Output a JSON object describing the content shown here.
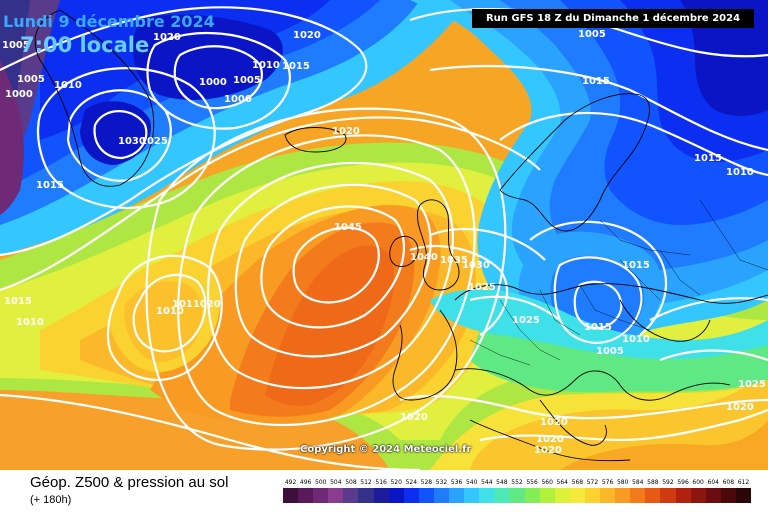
{
  "header": {
    "date": "Lundi 9 décembre 2024",
    "time": "7:00 locale",
    "run": "Run GFS 18 Z du Dimanche 1 décembre 2024"
  },
  "copyright": "Copyright © 2024 Meteociel.fr",
  "legend": {
    "title": "Géop. Z500 & pression au sol",
    "subtitle": "(+ 180h)",
    "ticks": [
      "492",
      "496",
      "500",
      "504",
      "508",
      "512",
      "516",
      "520",
      "524",
      "528",
      "532",
      "536",
      "540",
      "544",
      "548",
      "552",
      "556",
      "560",
      "564",
      "568",
      "572",
      "576",
      "580",
      "584",
      "588",
      "592",
      "596",
      "600",
      "604",
      "608",
      "612"
    ],
    "colors": [
      "#3d0f3d",
      "#5a1a5a",
      "#6e2a77",
      "#8a3c8f",
      "#5a3a8a",
      "#34318a",
      "#1c1c9a",
      "#0a16c6",
      "#0b2ef0",
      "#1154ff",
      "#1f7cff",
      "#2aa3ff",
      "#33c6ff",
      "#3fe0e8",
      "#4de9b8",
      "#5fe884",
      "#84ec57",
      "#b2f03e",
      "#dcf13a",
      "#f6e93a",
      "#fbd331",
      "#fbb929",
      "#f99a22",
      "#f47b1c",
      "#e65a16",
      "#cf3a12",
      "#b02210",
      "#8c1510",
      "#6b0d0e",
      "#4c090b",
      "#2a0608"
    ]
  },
  "isobars": [
    {
      "text": "1005",
      "pos": "top-left"
    },
    {
      "text": "1020",
      "pos": "top"
    },
    {
      "text": "1010",
      "pos": "top"
    },
    {
      "text": "1015",
      "pos": "top"
    },
    {
      "text": "1020",
      "pos": "top-center"
    },
    {
      "text": "1005",
      "pos": "top-right"
    },
    {
      "text": "1005",
      "pos": "left"
    },
    {
      "text": "1000",
      "pos": "left"
    },
    {
      "text": "1010",
      "pos": "left"
    },
    {
      "text": "1000",
      "pos": "center-left"
    },
    {
      "text": "1005",
      "pos": "center-left"
    },
    {
      "text": "1000",
      "pos": "center-left"
    },
    {
      "text": "1030",
      "pos": "left"
    },
    {
      "text": "1025",
      "pos": "left"
    },
    {
      "text": "1020",
      "pos": "center"
    },
    {
      "text": "1015",
      "pos": "right"
    },
    {
      "text": "1015",
      "pos": "right"
    },
    {
      "text": "1010",
      "pos": "right"
    },
    {
      "text": "1015",
      "pos": "left"
    },
    {
      "text": "1045",
      "pos": "center"
    },
    {
      "text": "1040",
      "pos": "center"
    },
    {
      "text": "1035",
      "pos": "center"
    },
    {
      "text": "1030",
      "pos": "center"
    },
    {
      "text": "1025",
      "pos": "center"
    },
    {
      "text": "1015",
      "pos": "right-center"
    },
    {
      "text": "1015",
      "pos": "left"
    },
    {
      "text": "1010",
      "pos": "left"
    },
    {
      "text": "1010",
      "pos": "left"
    },
    {
      "text": "1011020",
      "pos": "left"
    },
    {
      "text": "1025",
      "pos": "center"
    },
    {
      "text": "1015",
      "pos": "right-center"
    },
    {
      "text": "1010",
      "pos": "right-center"
    },
    {
      "text": "1005",
      "pos": "right-center"
    },
    {
      "text": "1025",
      "pos": "right"
    },
    {
      "text": "1020",
      "pos": "right"
    },
    {
      "text": "1020",
      "pos": "bottom"
    },
    {
      "text": "1020",
      "pos": "bottom"
    },
    {
      "text": "1020",
      "pos": "bottom"
    },
    {
      "text": "1020",
      "pos": "bottom"
    }
  ]
}
